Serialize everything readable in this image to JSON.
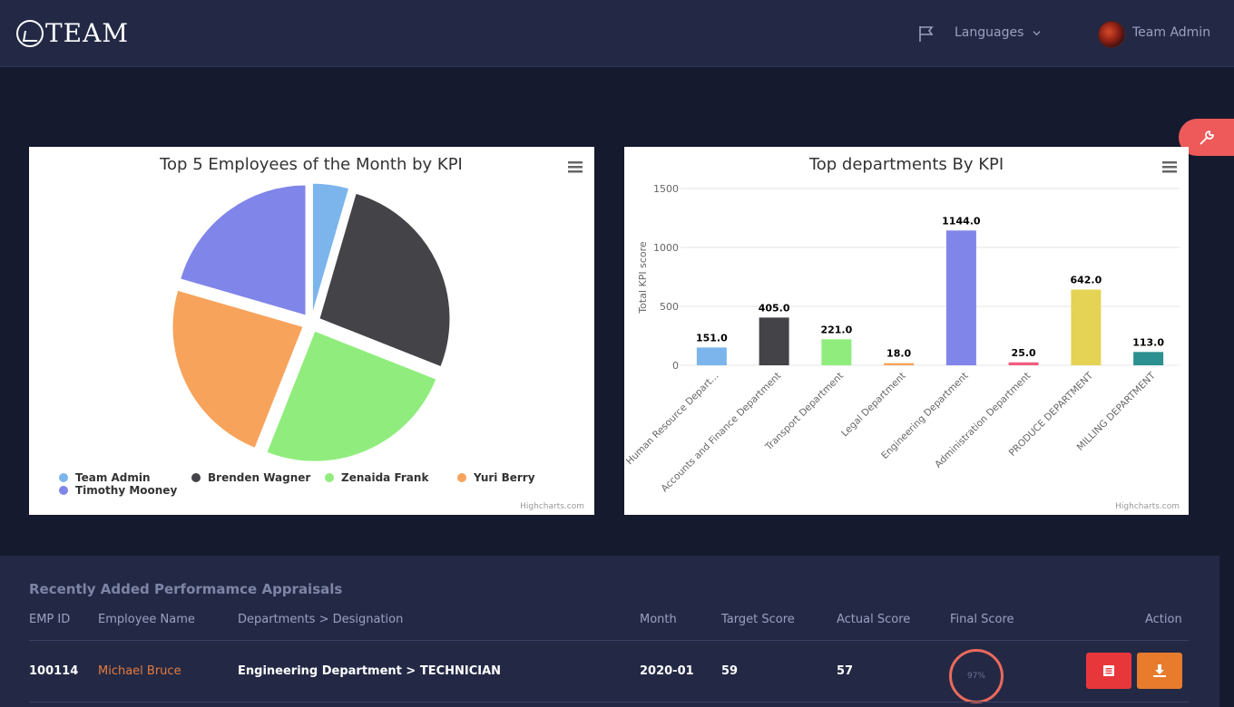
{
  "header": {
    "logo_text": "TEAM",
    "languages_label": "Languages",
    "user_name": "Team Admin",
    "icons": [
      "flag-icon",
      "chevron-down-icon",
      "avatar"
    ]
  },
  "settings": {
    "icon": "wrench-icon"
  },
  "charts": {
    "pie": {
      "menu_icon": "hamburger-menu-icon",
      "credit": "Highcharts.com"
    },
    "bar": {
      "menu_icon": "hamburger-menu-icon",
      "credit": "Highcharts.com"
    }
  },
  "chart_data": [
    {
      "type": "pie",
      "title": "Top 5 Employees of the Month by KPI",
      "legend_position": "bottom",
      "slices": [
        {
          "name": "Team Admin",
          "value": 4.5,
          "color": "#7cb5ec"
        },
        {
          "name": "Brenden Wagner",
          "value": 26.5,
          "color": "#434348"
        },
        {
          "name": "Zenaida Frank",
          "value": 25,
          "color": "#90ed7d"
        },
        {
          "name": "Yuri Berry",
          "value": 23.5,
          "color": "#f7a35c"
        },
        {
          "name": "Timothy Mooney",
          "value": 20.5,
          "color": "#8085e9"
        }
      ]
    },
    {
      "type": "bar",
      "title": "Top departments By KPI",
      "xlabel": "",
      "ylabel": "Total KPI score",
      "ylim": [
        0,
        1500
      ],
      "yticks": [
        0,
        500,
        1000,
        1500
      ],
      "grid": true,
      "categories": [
        "Human Resource Depart...",
        "Accounts and Finance Department",
        "Transport Department",
        "Legal Department",
        "Engineering Department",
        "Administration Department",
        "PRODUCE DEPARTMENT",
        "MILLING DEPARTMENT"
      ],
      "values": [
        151,
        405,
        221,
        18,
        1144,
        25,
        642,
        113
      ],
      "data_labels": [
        "151.0",
        "405.0",
        "221.0",
        "18.0",
        "1144.0",
        "25.0",
        "642.0",
        "113.0"
      ],
      "colors": [
        "#7cb5ec",
        "#434348",
        "#90ed7d",
        "#f7a35c",
        "#8085e9",
        "#f15c80",
        "#e4d354",
        "#2b908f"
      ]
    }
  ],
  "table": {
    "title": "Recently Added Performamce Appraisals",
    "headers": [
      "EMP ID",
      "Employee Name",
      "Departments > Designation",
      "Month",
      "Target Score",
      "Actual Score",
      "Final Score",
      "Action"
    ],
    "rows": [
      {
        "emp_id": "100114",
        "name": "Michael Bruce",
        "dept": "Engineering Department > TECHNICIAN",
        "month": "2020-01",
        "target": "59",
        "actual": "57",
        "final_score": "97%",
        "final_score_value": 97,
        "actions": [
          "view-icon",
          "download-icon"
        ]
      }
    ]
  }
}
